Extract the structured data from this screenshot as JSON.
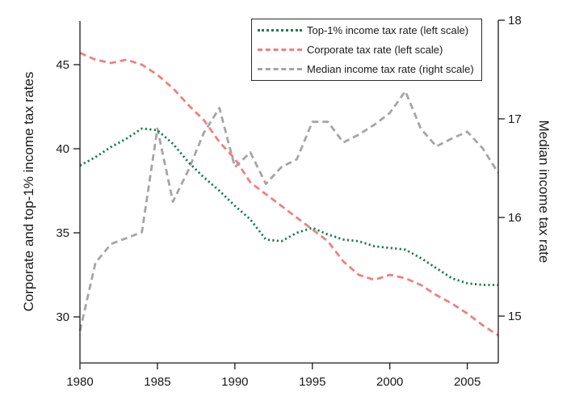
{
  "legend": {
    "items": [
      {
        "label": "Top-1% income tax rate (left scale)",
        "color": "#1b7d4d",
        "style": "dotted"
      },
      {
        "label": "Corporate tax rate (left scale)",
        "color": "#f08080",
        "style": "dashed"
      },
      {
        "label": "Median income tax rate (right scale)",
        "color": "#a5a5a5",
        "style": "dashed"
      }
    ]
  },
  "chart_data": {
    "type": "line",
    "title": "",
    "grid": false,
    "legend_position": "top-center-inside",
    "x": [
      1980,
      1981,
      1982,
      1983,
      1984,
      1985,
      1986,
      1987,
      1988,
      1989,
      1990,
      1991,
      1992,
      1993,
      1994,
      1995,
      1996,
      1997,
      1998,
      1999,
      2000,
      2001,
      2002,
      2003,
      2004,
      2005,
      2006,
      2007
    ],
    "x_axis": {
      "ticks": [
        1980,
        1985,
        1990,
        1995,
        2000,
        2005
      ],
      "range": [
        1980,
        2007
      ]
    },
    "left_axis": {
      "label": "Corporate and top-1% income tax rates",
      "ticks": [
        30,
        35,
        40,
        45
      ],
      "range": [
        27.2,
        47.6
      ]
    },
    "right_axis": {
      "label": "Median income tax rate",
      "ticks": [
        15,
        16,
        17,
        18
      ],
      "range": [
        14.5,
        18.0
      ]
    },
    "series": [
      {
        "name": "Top-1% income tax rate (left scale)",
        "scale": "left",
        "color": "#1b7d4d",
        "dash": "dotted",
        "values": [
          39.0,
          39.5,
          40.1,
          40.6,
          41.2,
          41.1,
          40.3,
          39.2,
          38.3,
          37.5,
          36.6,
          35.8,
          34.6,
          34.5,
          35.0,
          35.3,
          34.9,
          34.6,
          34.5,
          34.2,
          34.1,
          34.0,
          33.5,
          32.9,
          32.3,
          32.0,
          31.9,
          31.9
        ]
      },
      {
        "name": "Corporate tax rate (left scale)",
        "scale": "left",
        "color": "#f08080",
        "dash": "dashed",
        "values": [
          45.7,
          45.3,
          45.1,
          45.3,
          45.0,
          44.4,
          43.6,
          42.6,
          41.7,
          40.4,
          39.4,
          38.0,
          37.3,
          36.6,
          35.9,
          35.2,
          34.5,
          33.3,
          32.5,
          32.2,
          32.5,
          32.3,
          31.9,
          31.3,
          30.8,
          30.2,
          29.5,
          28.9
        ]
      },
      {
        "name": "Median income tax rate (right scale)",
        "scale": "right",
        "color": "#a5a5a5",
        "dash": "dashed",
        "values": [
          14.85,
          15.54,
          15.73,
          15.79,
          15.85,
          16.9,
          16.16,
          16.48,
          16.86,
          17.11,
          16.51,
          16.66,
          16.34,
          16.51,
          16.59,
          16.97,
          16.97,
          16.76,
          16.84,
          16.94,
          17.06,
          17.28,
          16.9,
          16.72,
          16.8,
          16.87,
          16.7,
          16.45
        ]
      }
    ]
  },
  "style": {
    "axis_color": "#1a1a1a",
    "text_color": "#1a1a1a",
    "background": "#ffffff"
  }
}
